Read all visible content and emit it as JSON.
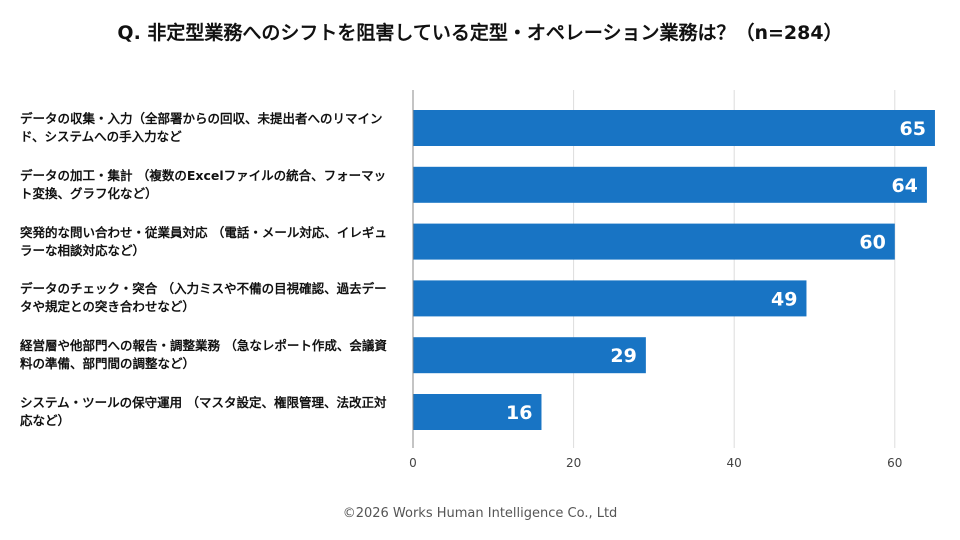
{
  "title": "Q. 非定型業務へのシフトを阻害している定型・オペレーション業務は？（n=284）",
  "footer": "©2026 Works Human Intelligence Co., Ltd",
  "colors": {
    "bar": "#1874c4",
    "bar_label": "#ffffff",
    "grid": "#dddddd",
    "axis": "#888888"
  },
  "chart_data": {
    "type": "bar",
    "orientation": "horizontal",
    "categories": [
      "データの収集・入力（全部署からの回収、未提出者へのリマインド、システムへの手入力など",
      "データの加工・集計 （複数のExcelファイルの統合、フォーマット変換、グラフ化など）",
      "突発的な問い合わせ・従業員対応 （電話・メール対応、イレギュラーな相談対応など）",
      "データのチェック・突合 （入力ミスや不備の目視確認、過去データや規定との突き合わせなど）",
      "経営層や他部門への報告・調整業務 （急なレポート作成、会議資料の準備、部門間の調整など）",
      "システム・ツールの保守運用 （マスタ設定、権限管理、法改正対応など）"
    ],
    "values": [
      65,
      64,
      60,
      49,
      29,
      16
    ],
    "xlim": [
      0,
      67
    ],
    "xticks": [
      0,
      20,
      40,
      60
    ],
    "grid": true,
    "data_labels": true
  }
}
